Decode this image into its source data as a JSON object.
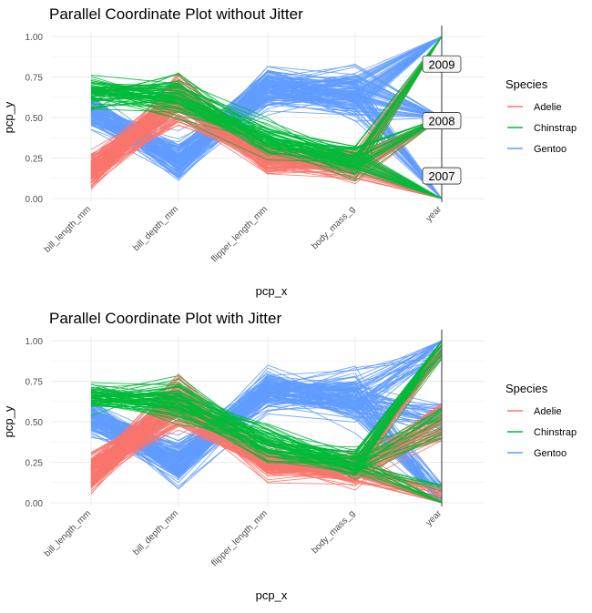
{
  "chart_data": [
    {
      "type": "line",
      "title": "Parallel Coordinate Plot without Jitter",
      "xlabel": "pcp_x",
      "ylabel": "pcp_y",
      "categories": [
        "bill_length_mm",
        "bill_depth_mm",
        "flipper_length_mm",
        "body_mass_g",
        "year"
      ],
      "ylim": [
        0,
        1
      ],
      "yticks": [
        "0.00",
        "0.25",
        "0.50",
        "0.75",
        "1.00"
      ],
      "grid": true,
      "legend": {
        "title": "Species",
        "placement": "right",
        "entries": [
          "Adelie",
          "Chinstrap",
          "Gentoo"
        ]
      },
      "colors": {
        "Adelie": "#F8766D",
        "Chinstrap": "#00BA38",
        "Gentoo": "#619CFF"
      },
      "year_labels": [
        {
          "text": "2009",
          "y": 0.83
        },
        {
          "text": "2008",
          "y": 0.48
        },
        {
          "text": "2007",
          "y": 0.14
        }
      ],
      "series": [
        {
          "name": "Adelie",
          "values": [
            0.18,
            0.62,
            0.25,
            0.2,
            0.48
          ]
        },
        {
          "name": "Chinstrap",
          "values": [
            0.66,
            0.63,
            0.36,
            0.23,
            0.5
          ]
        },
        {
          "name": "Gentoo",
          "values": [
            0.53,
            0.24,
            0.69,
            0.64,
            0.5
          ]
        }
      ],
      "jitter": false
    },
    {
      "type": "line",
      "title": "Parallel Coordinate Plot with Jitter",
      "xlabel": "pcp_x",
      "ylabel": "pcp_y",
      "categories": [
        "bill_length_mm",
        "bill_depth_mm",
        "flipper_length_mm",
        "body_mass_g",
        "year"
      ],
      "ylim": [
        0,
        1
      ],
      "yticks": [
        "0.00",
        "0.25",
        "0.50",
        "0.75",
        "1.00"
      ],
      "grid": true,
      "legend": {
        "title": "Species",
        "placement": "right",
        "entries": [
          "Adelie",
          "Chinstrap",
          "Gentoo"
        ]
      },
      "colors": {
        "Adelie": "#F8766D",
        "Chinstrap": "#00BA38",
        "Gentoo": "#619CFF"
      },
      "series": [
        {
          "name": "Adelie",
          "values": [
            0.18,
            0.62,
            0.25,
            0.2,
            0.48
          ]
        },
        {
          "name": "Chinstrap",
          "values": [
            0.66,
            0.63,
            0.36,
            0.23,
            0.5
          ]
        },
        {
          "name": "Gentoo",
          "values": [
            0.53,
            0.24,
            0.69,
            0.64,
            0.5
          ]
        }
      ],
      "jitter": true
    }
  ]
}
